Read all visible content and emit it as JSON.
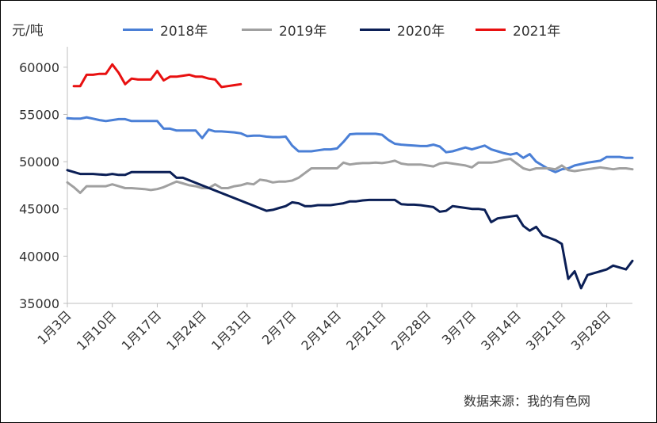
{
  "chart_data": {
    "type": "line",
    "ylabel": "元/吨",
    "source": "数据来源：我的有色网",
    "ylim": [
      35000,
      62000
    ],
    "yticks": [
      35000,
      40000,
      45000,
      50000,
      55000,
      60000
    ],
    "xlim": [
      0,
      88
    ],
    "xticks": [
      {
        "label": "1月3日",
        "x": 0
      },
      {
        "label": "1月10日",
        "x": 7
      },
      {
        "label": "1月17日",
        "x": 14
      },
      {
        "label": "1月24日",
        "x": 21
      },
      {
        "label": "1月31日",
        "x": 28
      },
      {
        "label": "2月7日",
        "x": 35
      },
      {
        "label": "2月14日",
        "x": 42
      },
      {
        "label": "2月21日",
        "x": 49
      },
      {
        "label": "2月28日",
        "x": 56
      },
      {
        "label": "3月7日",
        "x": 63
      },
      {
        "label": "3月14日",
        "x": 70
      },
      {
        "label": "3月21日",
        "x": 77
      },
      {
        "label": "3月28日",
        "x": 84
      }
    ],
    "legend_position": "top",
    "grid": false,
    "series": [
      {
        "name": "2018年",
        "color": "#4a7fd6",
        "x": [
          0,
          1,
          2,
          3,
          4,
          5,
          6,
          7,
          8,
          9,
          10,
          11,
          12,
          13,
          14,
          15,
          16,
          17,
          18,
          19,
          20,
          21,
          22,
          23,
          24,
          25,
          26,
          27,
          28,
          29,
          30,
          31,
          32,
          33,
          34,
          35,
          36,
          37,
          38,
          39,
          40,
          41,
          42,
          43,
          44,
          45,
          46,
          47,
          48,
          49,
          50,
          51,
          52,
          53,
          54,
          55,
          56,
          57,
          58,
          59,
          60,
          61,
          62,
          63,
          64,
          65,
          66,
          67,
          68,
          69,
          70,
          71,
          72,
          73,
          74,
          75,
          76,
          77,
          78,
          79,
          80,
          81,
          82,
          83,
          84,
          85,
          86,
          87,
          88
        ],
        "y": [
          54600,
          54550,
          54550,
          54700,
          54550,
          54400,
          54300,
          54400,
          54500,
          54500,
          54300,
          54300,
          54300,
          54300,
          54300,
          53500,
          53500,
          53300,
          53300,
          53300,
          53300,
          52500,
          53400,
          53200,
          53200,
          53150,
          53100,
          53000,
          52700,
          52750,
          52750,
          52650,
          52600,
          52600,
          52650,
          51700,
          51100,
          51100,
          51100,
          51200,
          51300,
          51300,
          51400,
          52100,
          52900,
          52950,
          52950,
          52950,
          52950,
          52850,
          52300,
          51900,
          51800,
          51750,
          51700,
          51650,
          51650,
          51800,
          51600,
          51000,
          51100,
          51300,
          51500,
          51300,
          51500,
          51700,
          51300,
          51100,
          50900,
          50750,
          50900,
          50400,
          50800,
          50000,
          49600,
          49200,
          48900,
          49200,
          49300,
          49600,
          49750,
          49900,
          50000,
          50100,
          50500,
          50500,
          50500,
          50400,
          50400
        ]
      },
      {
        "name": "2019年",
        "color": "#a0a0a0",
        "x": [
          0,
          1,
          2,
          3,
          4,
          5,
          6,
          7,
          8,
          9,
          10,
          11,
          12,
          13,
          14,
          15,
          16,
          17,
          18,
          19,
          20,
          21,
          22,
          23,
          24,
          25,
          26,
          27,
          28,
          29,
          30,
          31,
          32,
          33,
          34,
          35,
          36,
          37,
          38,
          39,
          40,
          41,
          42,
          43,
          44,
          45,
          46,
          47,
          48,
          49,
          50,
          51,
          52,
          53,
          54,
          55,
          56,
          57,
          58,
          59,
          60,
          61,
          62,
          63,
          64,
          65,
          66,
          67,
          68,
          69,
          70,
          71,
          72,
          73,
          74,
          75,
          76,
          77,
          78,
          79,
          80,
          81,
          82,
          83,
          84,
          85,
          86,
          87,
          88
        ],
        "y": [
          47800,
          47300,
          46700,
          47400,
          47400,
          47400,
          47400,
          47600,
          47400,
          47200,
          47200,
          47150,
          47100,
          47000,
          47100,
          47300,
          47600,
          47900,
          47700,
          47500,
          47400,
          47200,
          47200,
          47600,
          47200,
          47200,
          47400,
          47500,
          47700,
          47600,
          48100,
          48000,
          47800,
          47900,
          47900,
          48000,
          48300,
          48800,
          49300,
          49300,
          49300,
          49300,
          49300,
          49900,
          49700,
          49800,
          49850,
          49850,
          49900,
          49850,
          49950,
          50100,
          49800,
          49700,
          49700,
          49700,
          49600,
          49500,
          49800,
          49900,
          49800,
          49700,
          49600,
          49400,
          49900,
          49900,
          49900,
          50000,
          50200,
          50300,
          49800,
          49300,
          49100,
          49300,
          49300,
          49300,
          49200,
          49600,
          49100,
          49000,
          49100,
          49200,
          49300,
          49400,
          49300,
          49200,
          49300,
          49300,
          49200
        ]
      },
      {
        "name": "2020年",
        "color": "#0b1f56",
        "x": [
          0,
          1,
          2,
          3,
          4,
          5,
          6,
          7,
          8,
          9,
          10,
          11,
          12,
          13,
          14,
          15,
          16,
          17,
          18,
          31,
          32,
          33,
          34,
          35,
          36,
          37,
          38,
          39,
          40,
          41,
          42,
          43,
          44,
          45,
          46,
          47,
          48,
          49,
          50,
          51,
          52,
          53,
          54,
          55,
          56,
          57,
          58,
          59,
          60,
          61,
          62,
          63,
          64,
          65,
          66,
          67,
          68,
          69,
          70,
          71,
          72,
          73,
          74,
          75,
          76,
          77,
          78,
          79,
          80,
          81,
          82,
          83,
          84,
          85,
          86,
          87,
          88
        ],
        "y": [
          49100,
          48900,
          48700,
          48700,
          48700,
          48650,
          48600,
          48700,
          48600,
          48600,
          48900,
          48900,
          48900,
          48900,
          48900,
          48900,
          48900,
          48300,
          48300,
          44800,
          44900,
          45100,
          45300,
          45700,
          45600,
          45300,
          45300,
          45400,
          45400,
          45400,
          45500,
          45600,
          45800,
          45800,
          45900,
          45950,
          45950,
          45950,
          45950,
          45950,
          45500,
          45450,
          45450,
          45400,
          45300,
          45200,
          44700,
          44800,
          45300,
          45200,
          45100,
          45000,
          45000,
          44900,
          43600,
          44000,
          44100,
          44200,
          44300,
          43200,
          42700,
          43100,
          42200,
          41950,
          41700,
          41300,
          37600,
          38400,
          36600,
          38000,
          38200,
          38400,
          38600,
          39000,
          38800,
          38600,
          39500
        ]
      },
      {
        "name": "2021年",
        "color": "#e81010",
        "x": [
          1,
          2,
          3,
          4,
          5,
          6,
          7,
          8,
          9,
          10,
          11,
          12,
          13,
          14,
          15,
          16,
          17,
          18,
          19,
          20,
          21,
          22,
          23,
          24,
          25,
          26,
          27
        ],
        "y": [
          58000,
          58000,
          59200,
          59200,
          59300,
          59300,
          60300,
          59400,
          58200,
          58800,
          58700,
          58700,
          58700,
          59600,
          58600,
          59000,
          59000,
          59100,
          59200,
          59000,
          59000,
          58800,
          58700,
          57900,
          58000,
          58100,
          58200
        ]
      }
    ]
  }
}
